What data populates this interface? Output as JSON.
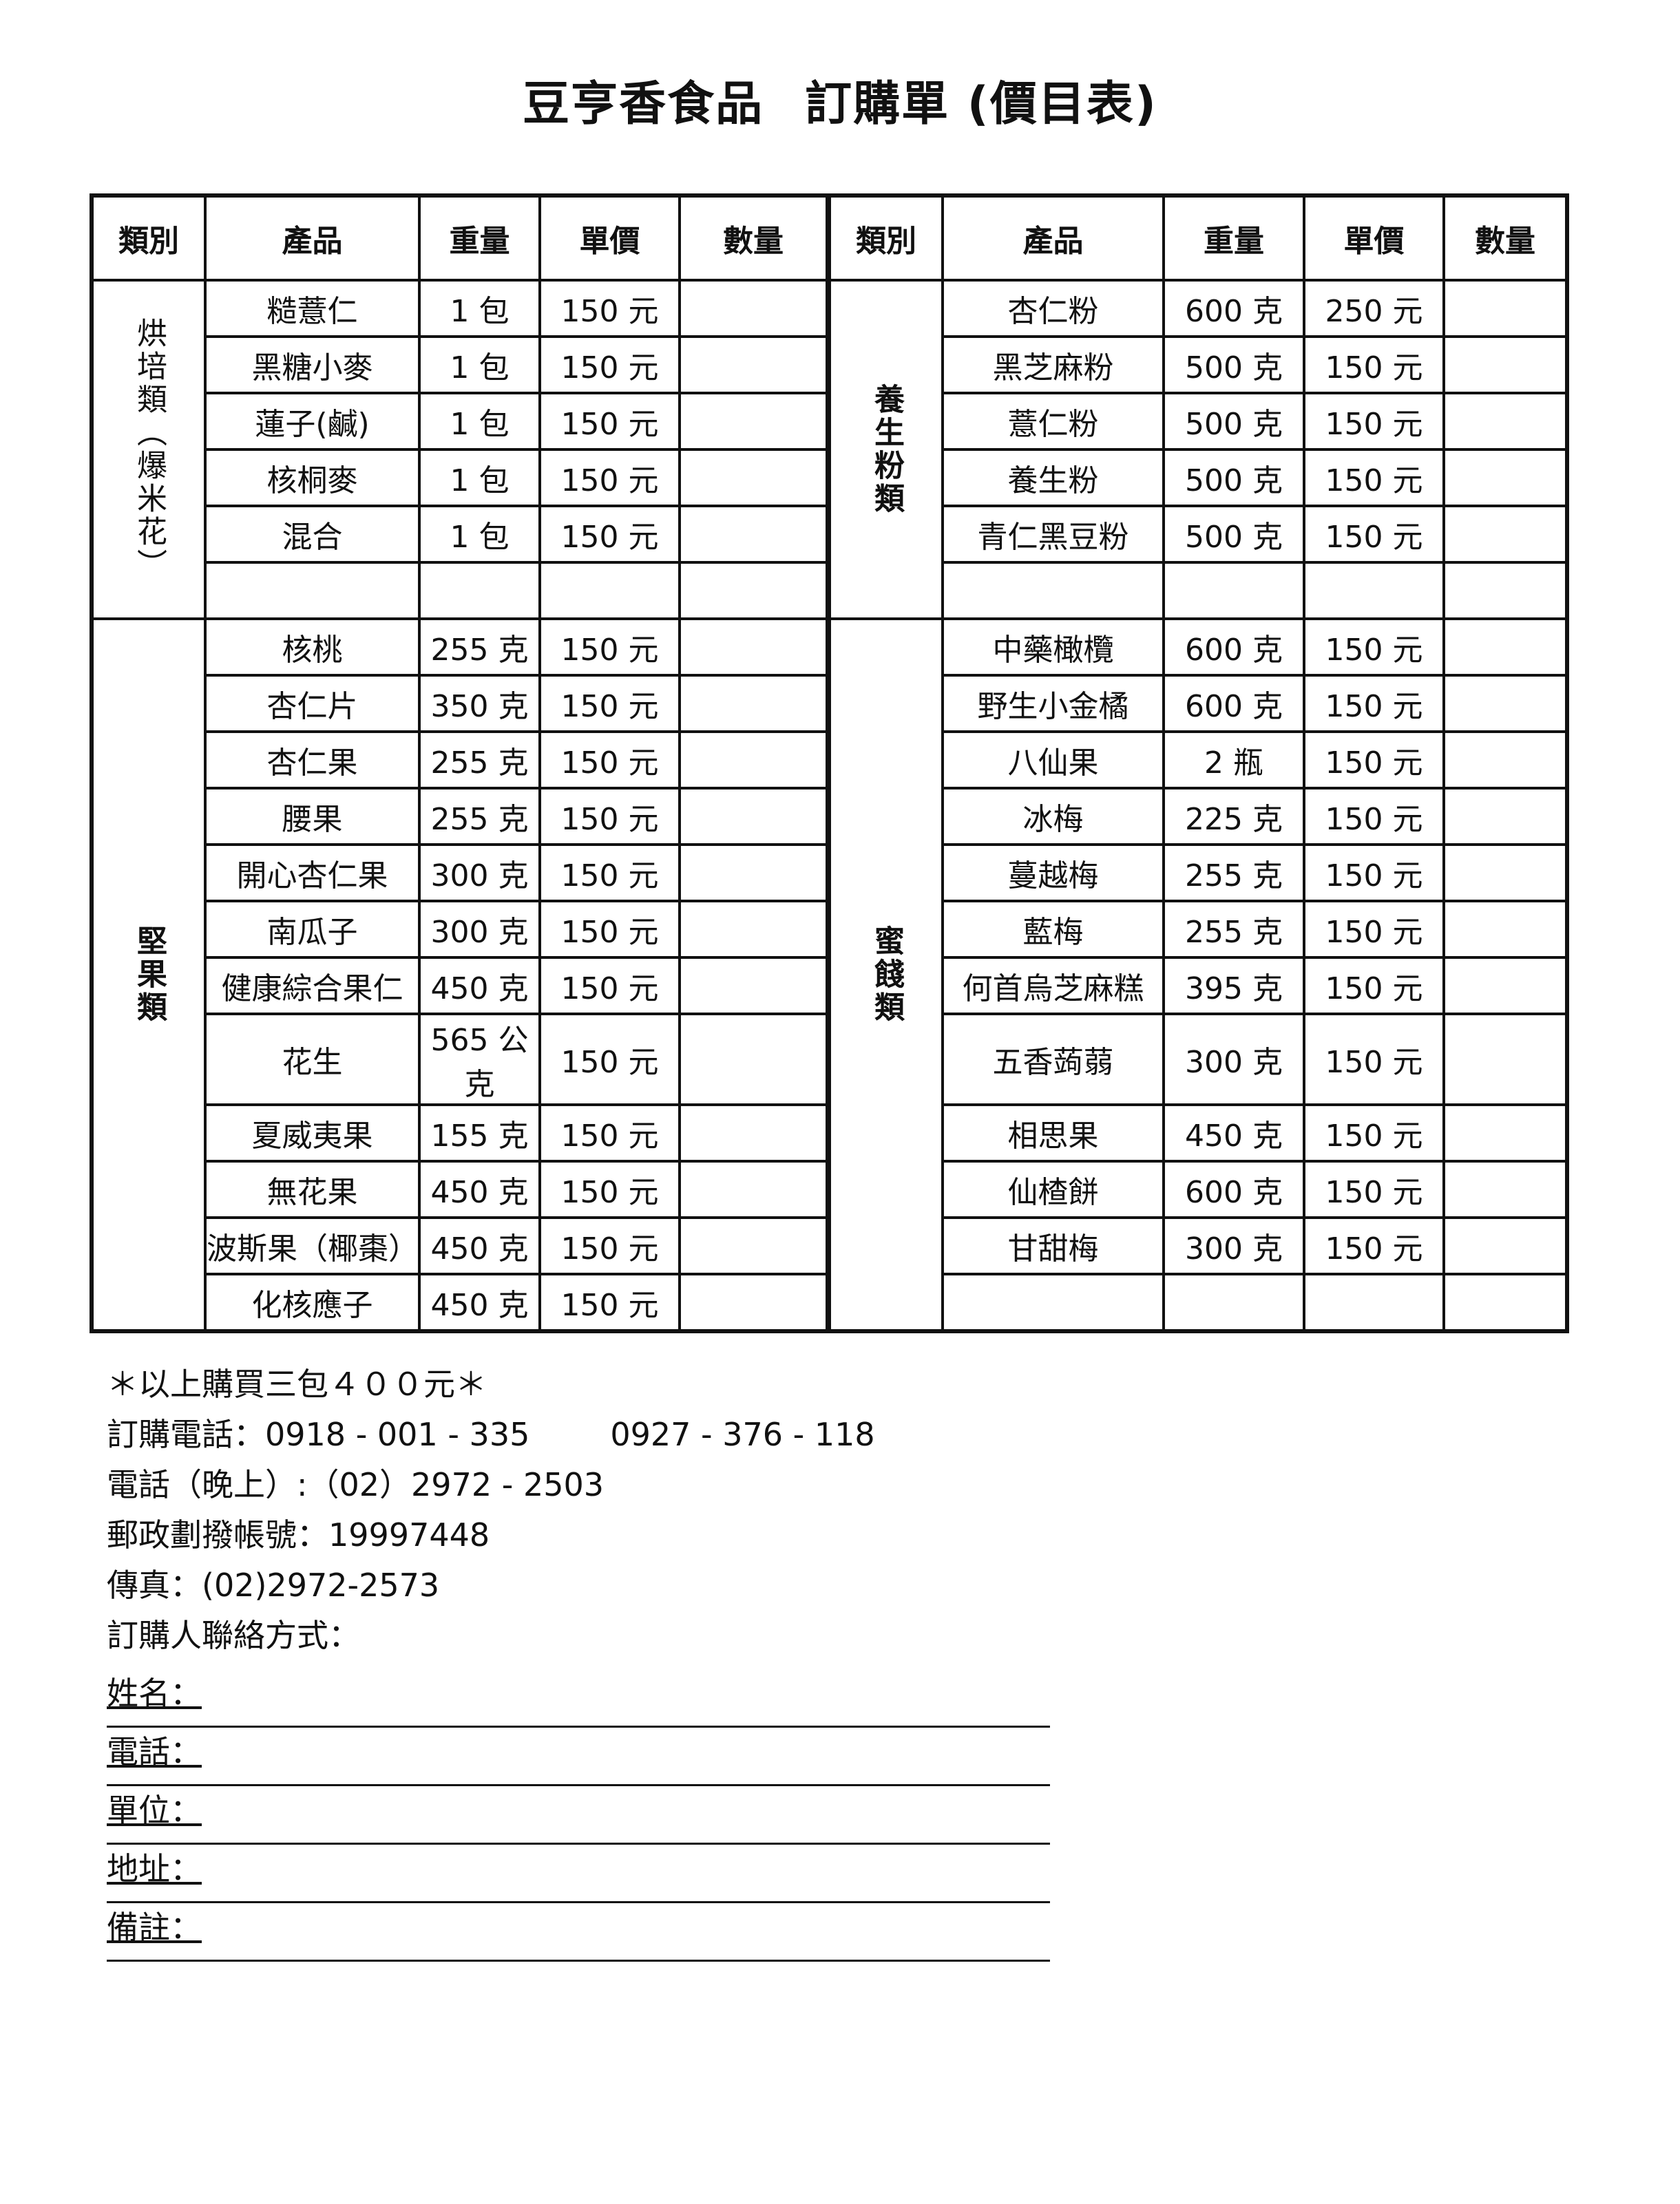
{
  "title": {
    "company": "豆亨香食品",
    "doc": "訂購單 (價目表)"
  },
  "headers": [
    "類別",
    "產品",
    "重量",
    "單價",
    "數量"
  ],
  "left": [
    {
      "category": "烘培類（爆米花）",
      "items": [
        {
          "name": "糙薏仁",
          "weight": "1 包",
          "price": "150 元"
        },
        {
          "name": "黑糖小麥",
          "weight": "1 包",
          "price": "150 元"
        },
        {
          "name": "蓮子(鹹)",
          "weight": "1 包",
          "price": "150 元"
        },
        {
          "name": "核桐麥",
          "weight": "1 包",
          "price": "150 元"
        },
        {
          "name": "混合",
          "weight": "1 包",
          "price": "150 元"
        },
        {
          "name": "",
          "weight": "",
          "price": ""
        }
      ]
    },
    {
      "category": "堅果類",
      "items": [
        {
          "name": "核桃",
          "weight": "255 克",
          "price": "150 元"
        },
        {
          "name": "杏仁片",
          "weight": "350 克",
          "price": "150 元"
        },
        {
          "name": "杏仁果",
          "weight": "255 克",
          "price": "150 元"
        },
        {
          "name": "腰果",
          "weight": "255 克",
          "price": "150 元"
        },
        {
          "name": "開心杏仁果",
          "weight": "300 克",
          "price": "150 元"
        },
        {
          "name": "南瓜子",
          "weight": "300 克",
          "price": "150 元"
        },
        {
          "name": "健康綜合果仁",
          "weight": "450 克",
          "price": "150 元"
        },
        {
          "name": "花生",
          "weight": "565 公克",
          "price": "150 元"
        },
        {
          "name": "夏威夷果",
          "weight": "155 克",
          "price": "150 元"
        },
        {
          "name": "無花果",
          "weight": "450 克",
          "price": "150 元"
        },
        {
          "name": "波斯果（椰棗）",
          "weight": "450 克",
          "price": "150 元"
        },
        {
          "name": "化核應子",
          "weight": "450 克",
          "price": "150 元"
        }
      ]
    }
  ],
  "right": [
    {
      "category": "養生粉類",
      "items": [
        {
          "name": "杏仁粉",
          "weight": "600 克",
          "price": "250 元"
        },
        {
          "name": "黑芝麻粉",
          "weight": "500 克",
          "price": "150 元"
        },
        {
          "name": "薏仁粉",
          "weight": "500 克",
          "price": "150 元"
        },
        {
          "name": "養生粉",
          "weight": "500 克",
          "price": "150 元"
        },
        {
          "name": "青仁黑豆粉",
          "weight": "500 克",
          "price": "150 元"
        },
        {
          "name": "",
          "weight": "",
          "price": ""
        }
      ]
    },
    {
      "category": "蜜餞類",
      "items": [
        {
          "name": "中藥橄欖",
          "weight": "600 克",
          "price": "150 元"
        },
        {
          "name": "野生小金橘",
          "weight": "600 克",
          "price": "150 元"
        },
        {
          "name": "八仙果",
          "weight": "2 瓶",
          "price": "150 元"
        },
        {
          "name": "冰梅",
          "weight": "225 克",
          "price": "150 元"
        },
        {
          "name": "蔓越梅",
          "weight": "255 克",
          "price": "150 元"
        },
        {
          "name": "藍梅",
          "weight": "255 克",
          "price": "150 元"
        },
        {
          "name": "何首烏芝麻糕",
          "weight": "395 克",
          "price": "150 元"
        },
        {
          "name": "五香蒟蒻",
          "weight": "300 克",
          "price": "150 元"
        },
        {
          "name": "相思果",
          "weight": "450 克",
          "price": "150 元"
        },
        {
          "name": "仙楂餅",
          "weight": "600 克",
          "price": "150 元"
        },
        {
          "name": "甘甜梅",
          "weight": "300 克",
          "price": "150 元"
        },
        {
          "name": "",
          "weight": "",
          "price": ""
        }
      ]
    }
  ],
  "info": {
    "promo": "＊以上購買三包４００元＊",
    "order_phone": "訂購電話：0918 - 001 - 335        0927 - 376 - 118",
    "evening_phone": "電話（晚上）:（02）2972 - 2503",
    "postal": "郵政劃撥帳號：19997448",
    "fax": "傳真：(02)2972-2573",
    "contact": "訂購人聯絡方式："
  },
  "form": {
    "name": "姓名：",
    "phone": "電話：",
    "unit": "單位：",
    "address": "地址：",
    "note": "備註："
  }
}
